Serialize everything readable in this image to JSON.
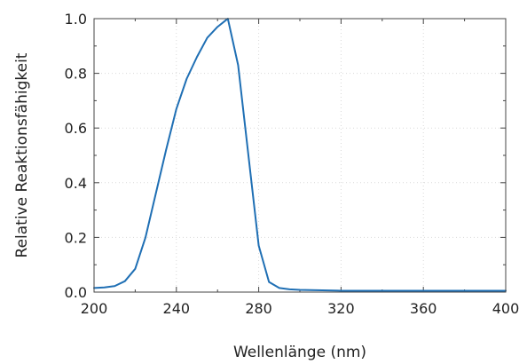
{
  "chart_data": {
    "type": "line",
    "title": "",
    "xlabel": "Wellenlänge (nm)",
    "ylabel": "Relative Reaktionsfähigkeit",
    "xlim": [
      200,
      400
    ],
    "ylim": [
      0,
      1.0
    ],
    "x_ticks": [
      200,
      240,
      280,
      320,
      360,
      400
    ],
    "y_ticks": [
      0.0,
      0.2,
      0.4,
      0.6,
      0.8,
      1.0
    ],
    "x_tick_labels": [
      "200",
      "240",
      "280",
      "320",
      "360",
      "400"
    ],
    "y_tick_labels": [
      "0.0",
      "0.2",
      "0.4",
      "0.6",
      "0.8",
      "1.0"
    ],
    "grid": true,
    "series": [
      {
        "color": "#1f6fb4",
        "x": [
          200,
          205,
          210,
          215,
          220,
          225,
          230,
          235,
          240,
          245,
          250,
          255,
          260,
          265,
          270,
          275,
          280,
          285,
          290,
          295,
          300,
          320,
          340,
          360,
          380,
          400
        ],
        "y": [
          0.015,
          0.017,
          0.022,
          0.04,
          0.085,
          0.2,
          0.36,
          0.52,
          0.67,
          0.78,
          0.86,
          0.93,
          0.97,
          1.0,
          0.83,
          0.5,
          0.17,
          0.037,
          0.015,
          0.01,
          0.008,
          0.005,
          0.005,
          0.005,
          0.005,
          0.005
        ]
      }
    ]
  }
}
